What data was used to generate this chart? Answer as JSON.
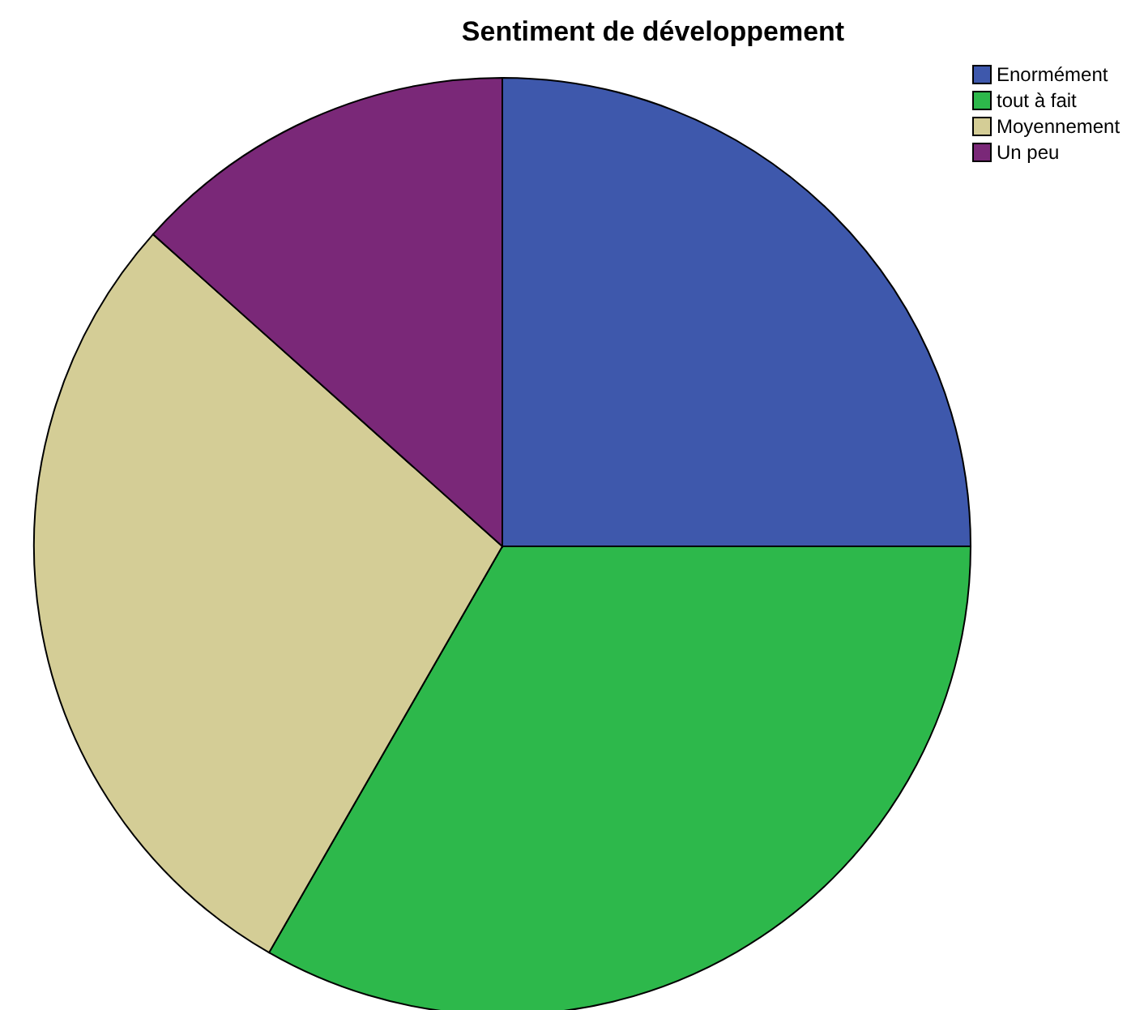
{
  "chart_data": {
    "type": "pie",
    "title": "Sentiment de développement",
    "categories": [
      "Enormément",
      "tout à fait",
      "Moyennement",
      "Un peu"
    ],
    "values": [
      25,
      33.3,
      28.3,
      13.4
    ],
    "colors": [
      "#3e58ac",
      "#2db84b",
      "#d4cd96",
      "#7a2878"
    ],
    "legend": "top right"
  }
}
